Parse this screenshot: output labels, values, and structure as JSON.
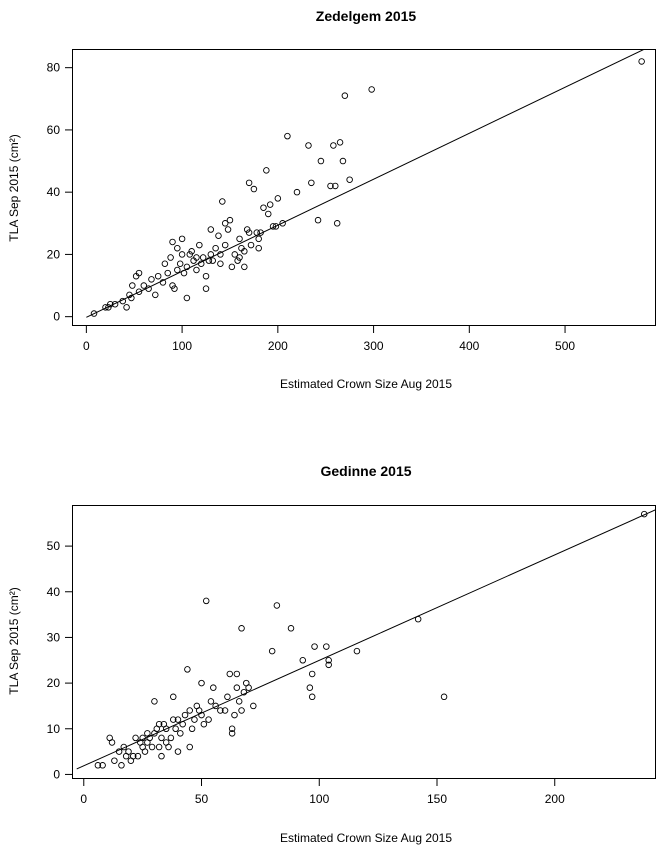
{
  "chart_data": [
    {
      "type": "scatter",
      "title": "Zedelgem 2015",
      "xlabel": "Estimated Crown Size Aug 2015",
      "ylabel": "TLA Sep 2015 (cm²)",
      "xlim": [
        -15,
        595
      ],
      "ylim": [
        -3,
        86
      ],
      "xticks": [
        0,
        100,
        200,
        300,
        400,
        500
      ],
      "yticks": [
        0,
        20,
        40,
        60,
        80
      ],
      "fit_line": {
        "x": [
          0,
          590
        ],
        "y": [
          -0.2,
          87
        ]
      },
      "points": [
        [
          8,
          1
        ],
        [
          20,
          3
        ],
        [
          23,
          3
        ],
        [
          25,
          4
        ],
        [
          30,
          4
        ],
        [
          38,
          5
        ],
        [
          42,
          3
        ],
        [
          45,
          7
        ],
        [
          47,
          6
        ],
        [
          48,
          10
        ],
        [
          52,
          13
        ],
        [
          55,
          8
        ],
        [
          55,
          14
        ],
        [
          60,
          10
        ],
        [
          65,
          9
        ],
        [
          68,
          12
        ],
        [
          72,
          7
        ],
        [
          75,
          13
        ],
        [
          80,
          11
        ],
        [
          82,
          17
        ],
        [
          85,
          14
        ],
        [
          88,
          19
        ],
        [
          90,
          10
        ],
        [
          90,
          24
        ],
        [
          92,
          9
        ],
        [
          95,
          15
        ],
        [
          95,
          22
        ],
        [
          98,
          17
        ],
        [
          100,
          20
        ],
        [
          100,
          25
        ],
        [
          102,
          14
        ],
        [
          105,
          6
        ],
        [
          105,
          16
        ],
        [
          108,
          20
        ],
        [
          110,
          21
        ],
        [
          112,
          18
        ],
        [
          115,
          15
        ],
        [
          115,
          19
        ],
        [
          118,
          23
        ],
        [
          120,
          17
        ],
        [
          122,
          19
        ],
        [
          125,
          13
        ],
        [
          125,
          9
        ],
        [
          128,
          18
        ],
        [
          130,
          20
        ],
        [
          130,
          28
        ],
        [
          132,
          18
        ],
        [
          135,
          22
        ],
        [
          138,
          26
        ],
        [
          140,
          17
        ],
        [
          140,
          20
        ],
        [
          142,
          37
        ],
        [
          145,
          23
        ],
        [
          145,
          30
        ],
        [
          148,
          28
        ],
        [
          150,
          31
        ],
        [
          152,
          16
        ],
        [
          155,
          20
        ],
        [
          158,
          18
        ],
        [
          160,
          19
        ],
        [
          160,
          25
        ],
        [
          162,
          22
        ],
        [
          165,
          21
        ],
        [
          165,
          16
        ],
        [
          168,
          28
        ],
        [
          170,
          43
        ],
        [
          170,
          27
        ],
        [
          172,
          23
        ],
        [
          175,
          41
        ],
        [
          178,
          27
        ],
        [
          180,
          25
        ],
        [
          180,
          22
        ],
        [
          182,
          27
        ],
        [
          185,
          35
        ],
        [
          188,
          47
        ],
        [
          190,
          33
        ],
        [
          192,
          36
        ],
        [
          195,
          29
        ],
        [
          198,
          29
        ],
        [
          200,
          38
        ],
        [
          205,
          30
        ],
        [
          210,
          58
        ],
        [
          220,
          40
        ],
        [
          232,
          55
        ],
        [
          235,
          43
        ],
        [
          242,
          31
        ],
        [
          245,
          50
        ],
        [
          255,
          42
        ],
        [
          258,
          55
        ],
        [
          260,
          42
        ],
        [
          262,
          30
        ],
        [
          265,
          56
        ],
        [
          268,
          50
        ],
        [
          270,
          71
        ],
        [
          275,
          44
        ],
        [
          298,
          73
        ],
        [
          580,
          82
        ]
      ]
    },
    {
      "type": "scatter",
      "title": "Gedinne 2015",
      "xlabel": "Estimated Crown Size Aug 2015",
      "ylabel": "TLA Sep 2015 (cm²)",
      "xlim": [
        -5,
        243
      ],
      "ylim": [
        -1,
        59
      ],
      "xticks": [
        0,
        50,
        100,
        150,
        200
      ],
      "yticks": [
        0,
        10,
        20,
        30,
        40,
        50
      ],
      "fit_line": {
        "x": [
          -3,
          243
        ],
        "y": [
          1.2,
          58
        ]
      },
      "points": [
        [
          6,
          2
        ],
        [
          8,
          2
        ],
        [
          11,
          8
        ],
        [
          12,
          7
        ],
        [
          13,
          3
        ],
        [
          15,
          5
        ],
        [
          16,
          2
        ],
        [
          17,
          6
        ],
        [
          18,
          4
        ],
        [
          19,
          5
        ],
        [
          20,
          3
        ],
        [
          21,
          4
        ],
        [
          22,
          8
        ],
        [
          23,
          4
        ],
        [
          24,
          7
        ],
        [
          25,
          6
        ],
        [
          25,
          8
        ],
        [
          26,
          5
        ],
        [
          27,
          9
        ],
        [
          27,
          7
        ],
        [
          28,
          8
        ],
        [
          29,
          6
        ],
        [
          30,
          9
        ],
        [
          30,
          16
        ],
        [
          31,
          10
        ],
        [
          32,
          6
        ],
        [
          32,
          11
        ],
        [
          33,
          4
        ],
        [
          33,
          8
        ],
        [
          34,
          11
        ],
        [
          35,
          7
        ],
        [
          35,
          10
        ],
        [
          36,
          6
        ],
        [
          37,
          8
        ],
        [
          38,
          12
        ],
        [
          38,
          17
        ],
        [
          39,
          10
        ],
        [
          40,
          12
        ],
        [
          40,
          5
        ],
        [
          41,
          9
        ],
        [
          42,
          11
        ],
        [
          43,
          13
        ],
        [
          44,
          23
        ],
        [
          45,
          6
        ],
        [
          45,
          14
        ],
        [
          46,
          10
        ],
        [
          47,
          12
        ],
        [
          48,
          15
        ],
        [
          49,
          14
        ],
        [
          50,
          13
        ],
        [
          50,
          20
        ],
        [
          51,
          11
        ],
        [
          52,
          38
        ],
        [
          53,
          12
        ],
        [
          54,
          16
        ],
        [
          55,
          19
        ],
        [
          56,
          15
        ],
        [
          58,
          14
        ],
        [
          60,
          14
        ],
        [
          61,
          17
        ],
        [
          62,
          22
        ],
        [
          63,
          10
        ],
        [
          63,
          9
        ],
        [
          64,
          13
        ],
        [
          65,
          19
        ],
        [
          65,
          22
        ],
        [
          66,
          16
        ],
        [
          67,
          32
        ],
        [
          67,
          14
        ],
        [
          68,
          18
        ],
        [
          69,
          20
        ],
        [
          70,
          19
        ],
        [
          72,
          15
        ],
        [
          80,
          27
        ],
        [
          82,
          37
        ],
        [
          88,
          32
        ],
        [
          93,
          25
        ],
        [
          96,
          19
        ],
        [
          97,
          17
        ],
        [
          97,
          22
        ],
        [
          98,
          28
        ],
        [
          103,
          28
        ],
        [
          104,
          25
        ],
        [
          104,
          24
        ],
        [
          116,
          27
        ],
        [
          142,
          34
        ],
        [
          153,
          17
        ],
        [
          238,
          57
        ]
      ]
    }
  ]
}
